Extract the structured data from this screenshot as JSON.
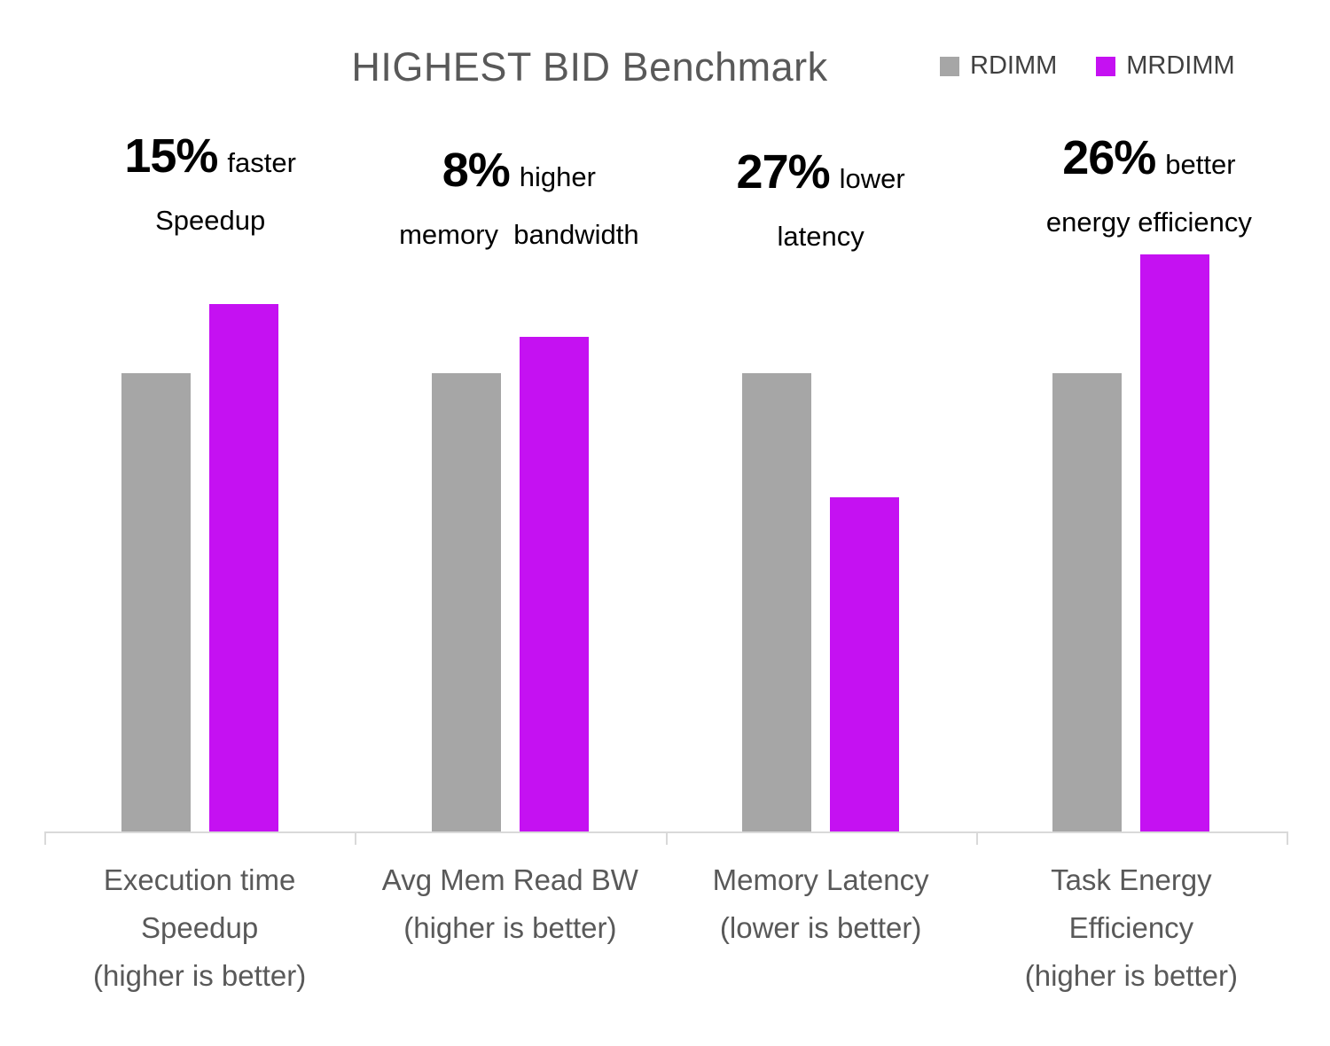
{
  "chart_data": {
    "type": "bar",
    "title": "HIGHEST BID Benchmark",
    "categories": [
      "Execution time Speedup (higher is better)",
      "Avg Mem Read BW (higher is better)",
      "Memory Latency (lower is better)",
      "Task Energy Efficiency (higher is better)"
    ],
    "category_label_lines": [
      [
        "Execution time",
        "Speedup",
        "(higher is better)"
      ],
      [
        "Avg Mem Read BW",
        "(higher is better)"
      ],
      [
        "Memory Latency",
        "(lower is better)"
      ],
      [
        "Task Energy",
        "Efficiency",
        "(higher is better)"
      ]
    ],
    "series": [
      {
        "name": "RDIMM",
        "color": "#a6a6a6",
        "values": [
          1.0,
          1.0,
          1.0,
          1.0
        ]
      },
      {
        "name": "MRDIMM",
        "color": "#c511f2",
        "values": [
          1.15,
          1.08,
          0.73,
          1.26
        ]
      }
    ],
    "annotations": [
      {
        "pct": "15%",
        "suffix": "faster",
        "line2": "Speedup"
      },
      {
        "pct": "8%",
        "suffix": "higher",
        "line2": "memory  bandwidth"
      },
      {
        "pct": "27%",
        "suffix": "lower",
        "line2": "latency"
      },
      {
        "pct": "26%",
        "suffix": "better",
        "line2": "energy efficiency"
      }
    ],
    "ylim": [
      0,
      1.35
    ],
    "grid": false,
    "legend_position": "top-right",
    "axis_color": "#d9d9d9",
    "title_color": "#595959",
    "label_color": "#595959",
    "annotation_color": "#000000"
  }
}
